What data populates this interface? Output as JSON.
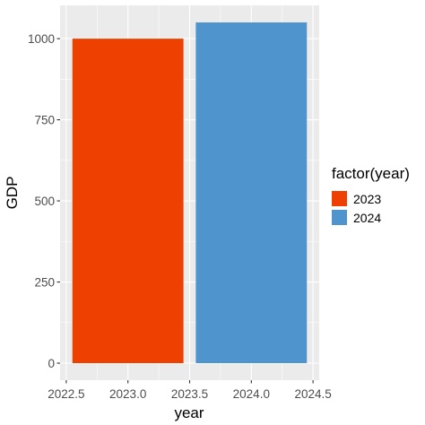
{
  "chart_data": {
    "type": "bar",
    "x": [
      2023,
      2024
    ],
    "values": [
      1000,
      1050
    ],
    "colors": [
      "#ee4000",
      "#4f94cd"
    ],
    "xlabel": "year",
    "ylabel": "GDP",
    "xlim": [
      2022.45,
      2024.55
    ],
    "ylim": [
      -52.5,
      1102.5
    ],
    "bar_width": 0.9,
    "xticks": [
      2022.5,
      2023.0,
      2023.5,
      2024.0,
      2024.5
    ],
    "xtick_labels": [
      "2022.5",
      "2023.0",
      "2023.5",
      "2024.0",
      "2024.5"
    ],
    "yticks": [
      0,
      250,
      500,
      750,
      1000
    ],
    "ytick_labels": [
      "0",
      "250",
      "500",
      "750",
      "1000"
    ],
    "grid": true,
    "legend": {
      "title": "factor(year)",
      "placement": "right",
      "entries": [
        {
          "label": "2023",
          "color": "#ee4000"
        },
        {
          "label": "2024",
          "color": "#4f94cd"
        }
      ]
    }
  }
}
